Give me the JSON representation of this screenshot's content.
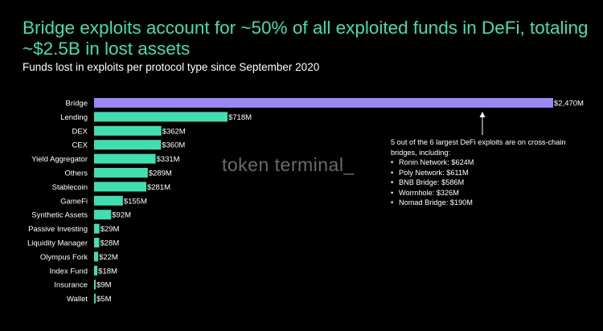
{
  "chart_data": {
    "type": "bar",
    "orientation": "horizontal",
    "title": "Bridge exploits account for ~50% of all exploited funds in DeFi, totaling ~$2.5B in lost assets",
    "subtitle": "Funds lost in exploits per protocol type since September 2020",
    "categories": [
      "Bridge",
      "Lending",
      "DEX",
      "CEX",
      "Yield Aggregator",
      "Others",
      "Stablecoin",
      "GameFi",
      "Synthetic Assets",
      "Passive Investing",
      "Liquidity Manager",
      "Olympus Fork",
      "Index Fund",
      "Insurance",
      "Wallet"
    ],
    "values": [
      2470,
      718,
      362,
      360,
      331,
      289,
      281,
      155,
      92,
      29,
      28,
      22,
      18,
      9,
      5
    ],
    "value_labels": [
      "$2,470M",
      "$718M",
      "$362M",
      "$360M",
      "$331M",
      "$289M",
      "$281M",
      "$155M",
      "$92M",
      "$29M",
      "$28M",
      "$22M",
      "$18M",
      "$9M",
      "$5M"
    ],
    "unit": "$M",
    "xlim": [
      0,
      2470
    ],
    "grid": false,
    "legend": "none",
    "highlight_color": "#9b87f5",
    "bar_color": "#3fe0b0",
    "annotation": {
      "intro": "5 out of the 6 largest DeFi exploits are on cross-chain bridges, including:",
      "items": [
        "Ronin Network: $624M",
        "Poly Network: $611M",
        "BNB Bridge: $586M",
        "Wormhole: $326M",
        "Nomad Bridge: $190M"
      ]
    }
  },
  "watermark": "token terminal_",
  "colors": {
    "background": "#000000",
    "title": "#3fe0b0",
    "text": "#ffffff",
    "watermark": "#6b6b6b"
  }
}
